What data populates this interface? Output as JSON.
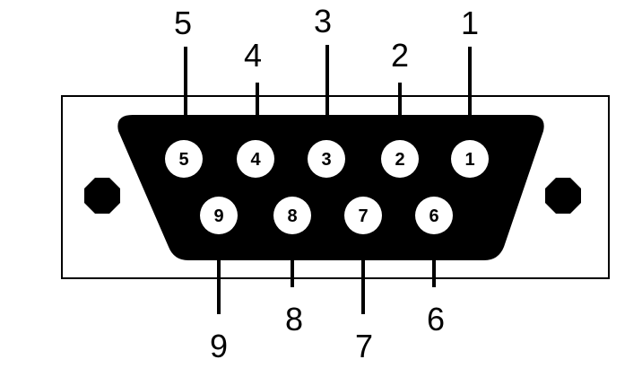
{
  "connector": {
    "top_row": [
      {
        "pin": "5",
        "label": "5"
      },
      {
        "pin": "4",
        "label": "4"
      },
      {
        "pin": "3",
        "label": "3"
      },
      {
        "pin": "2",
        "label": "2"
      },
      {
        "pin": "1",
        "label": "1"
      }
    ],
    "bottom_row": [
      {
        "pin": "9",
        "label": "9"
      },
      {
        "pin": "8",
        "label": "8"
      },
      {
        "pin": "7",
        "label": "7"
      },
      {
        "pin": "6",
        "label": "6"
      }
    ]
  }
}
